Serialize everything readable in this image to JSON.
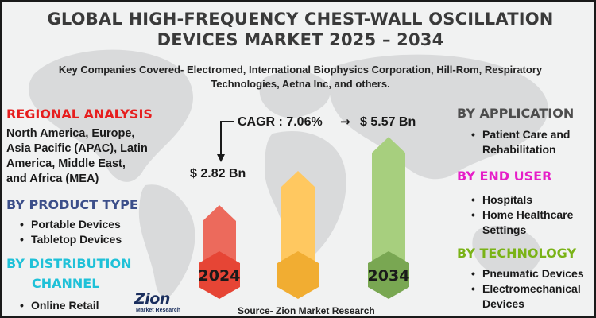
{
  "title": "GLOBAL HIGH-FREQUENCY CHEST-WALL OSCILLATION DEVICES MARKET 2025 – 2034",
  "subtitle": "Key Companies Covered- Electromed, International Biophysics Corporation, Hill-Rom, Respiratory Technologies, Aetna Inc, and others.",
  "colors": {
    "regional": "#e61e1e",
    "product": "#3c4f8a",
    "distribution": "#1fc1d8",
    "application": "#4d4d4d",
    "end_user": "#e61ec8",
    "technology": "#7ab317",
    "bar_2024": "#ec6a5c",
    "bar_mid": "#ffc860",
    "bar_2034": "#a7cf7e",
    "badge_2024": "#e64535",
    "badge_mid": "#f1ad32",
    "badge_2034": "#79a752"
  },
  "left": {
    "regional_heading": "REGIONAL ANALYSIS",
    "regional_lines": [
      "North America, Europe,",
      "Asia Pacific (APAC), Latin",
      "America, Middle East,",
      "and Africa (MEA)"
    ],
    "product_heading": "BY PRODUCT TYPE",
    "product_items": [
      "Portable Devices",
      "Tabletop Devices"
    ],
    "distribution_heading_1": "BY DISTRIBUTION",
    "distribution_heading_2": "CHANNEL",
    "distribution_items": [
      "Online Retail"
    ]
  },
  "right": {
    "application_heading": "BY APPLICATION",
    "application_lines": [
      "Patient Care and",
      "Rehabilitation"
    ],
    "end_user_heading": "BY END USER",
    "end_user_lines": [
      "Hospitals",
      "Home Healthcare",
      "Settings"
    ],
    "technology_heading": "BY TECHNOLOGY",
    "technology_lines": [
      "Pneumatic Devices",
      "Electromechanical",
      "Devices"
    ]
  },
  "chart_data": {
    "type": "bar",
    "categories": [
      "2024",
      "",
      "2034"
    ],
    "values": [
      2.82,
      4.2,
      5.57
    ],
    "value_labels": [
      "$ 2.82 Bn",
      "",
      "$ 5.57 Bn"
    ],
    "cagr_label": "CAGR : 7.06%",
    "cagr_arrow": "→"
  },
  "source": "Source- Zion Market Research",
  "logo": {
    "word": "Zion",
    "sub": "Market Research"
  }
}
